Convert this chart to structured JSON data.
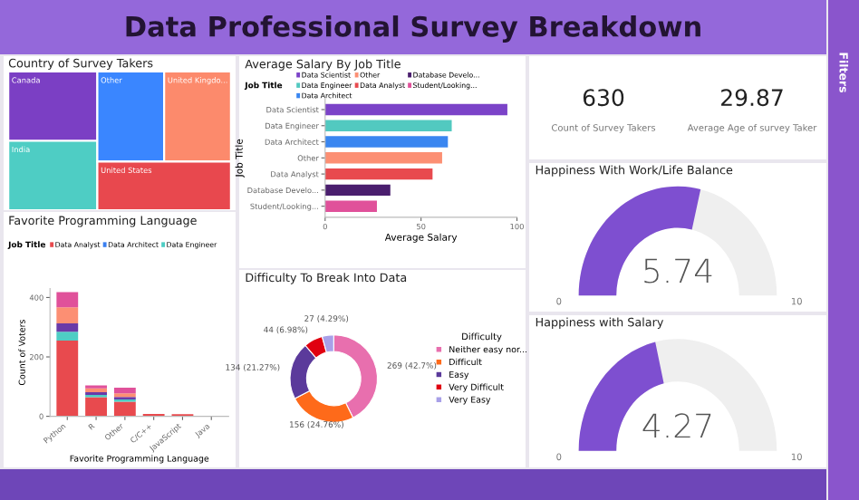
{
  "chart_data": [
    {
      "type": "other",
      "title": "Data Professional Survey Breakdown",
      "annotations": [
        "Filters"
      ]
    },
    {
      "type": "other",
      "title": "Country of Survey Takers",
      "categories": [
        "Canada",
        "India",
        "Other",
        "United Kingdo...",
        "United States"
      ],
      "colors": [
        "#7b3fc4",
        "#4ecdc4",
        "#3a86ff",
        "#fc8a6c",
        "#e8484e"
      ]
    },
    {
      "type": "bar",
      "stacked": true,
      "title": "Favorite Programming Language",
      "legend_title": "Job Title",
      "legend": "top",
      "xlabel": "Favorite Programming Language",
      "ylabel": "Count of Voters",
      "categories": [
        "Python",
        "R",
        "Other",
        "C/C++",
        "JavaScript",
        "Java"
      ],
      "ylim": [
        0,
        430
      ],
      "yticks": [
        0,
        200,
        400
      ],
      "grid": false,
      "series": [
        {
          "name": "Data Analyst",
          "color": "#e84a4e",
          "values": [
            255,
            64,
            49,
            8,
            7,
            2
          ]
        },
        {
          "name": "Data Architect",
          "color": "#3a7ff0",
          "values": [
            null,
            null,
            null,
            null,
            null,
            null
          ]
        },
        {
          "name": "Data Engineer",
          "color": "#4ecdc4",
          "values": [
            30,
            8,
            8,
            null,
            null,
            null
          ]
        },
        {
          "color": "#6a3aa8",
          "values": [
            28,
            9,
            8,
            null,
            null,
            null
          ]
        },
        {
          "color": "#fc8f73",
          "values": [
            54,
            13,
            12,
            null,
            null,
            null
          ]
        },
        {
          "color": "#e0519a",
          "values": [
            51,
            10,
            19,
            null,
            null,
            null
          ]
        }
      ]
    },
    {
      "type": "bar",
      "orientation": "horizontal",
      "title": "Average Salary By Job Title",
      "legend_title": "Job Title",
      "legend": "top",
      "xlabel": "Average Salary",
      "ylabel": "Job Title",
      "categories": [
        "Data Scientist",
        "Data Engineer",
        "Data Architect",
        "Other",
        "Data Analyst",
        "Database Develo...",
        "Student/Looking..."
      ],
      "series": [
        {
          "name": "Data Scientist",
          "color": "#7b43c8",
          "values": [
            95,
            null,
            null,
            null,
            null,
            null,
            null
          ]
        },
        {
          "name": "Data Engineer",
          "color": "#52c9c0",
          "values": [
            null,
            66,
            null,
            null,
            null,
            null,
            null
          ]
        },
        {
          "name": "Data Architect",
          "color": "#3a86f0",
          "values": [
            null,
            null,
            64,
            null,
            null,
            null,
            null
          ]
        },
        {
          "name": "Other",
          "color": "#fc8f73",
          "values": [
            null,
            null,
            null,
            61,
            null,
            null,
            null
          ]
        },
        {
          "name": "Data Analyst",
          "color": "#e84a4e",
          "values": [
            null,
            null,
            null,
            null,
            56,
            null,
            null
          ]
        },
        {
          "name": "Database Develo...",
          "color": "#4a1e6e",
          "values": [
            null,
            null,
            null,
            null,
            null,
            34,
            null
          ]
        },
        {
          "name": "Student/Looking...",
          "color": "#e0519a",
          "values": [
            null,
            null,
            null,
            null,
            null,
            null,
            27
          ]
        }
      ],
      "xlim": [
        0,
        100
      ],
      "xticks": [
        0,
        50,
        100
      ],
      "grid": false
    },
    {
      "type": "donut",
      "title": "Difficulty To Break Into Data",
      "legend_title": "Difficulty",
      "legend": "right",
      "categories": [
        "Neither easy nor...",
        "Difficult",
        "Easy",
        "Very Difficult",
        "Very Easy"
      ],
      "values": [
        269,
        156,
        134,
        44,
        27
      ],
      "value_labels": [
        "269 (42.7%)",
        "156 (24.76%)",
        "134 (21.27%)",
        "44 (6.98%)",
        "27 (4.29%)"
      ],
      "colors": [
        "#e86fae",
        "#fe6a1a",
        "#5b3a9b",
        "#e00010",
        "#a8a0e8"
      ]
    },
    {
      "type": "other",
      "annotations": [
        "630",
        "Count of Survey Takers",
        "29.87",
        "Average Age of survey Taker"
      ]
    },
    {
      "type": "other",
      "title": "Happiness With Work/Life Balance",
      "annotations": [
        "5.74",
        "0",
        "10"
      ],
      "colors": [
        "#7e4fd0"
      ]
    },
    {
      "type": "other",
      "title": "Happiness with Salary",
      "annotations": [
        "4.27",
        "0",
        "10"
      ],
      "colors": [
        "#7e4fd0"
      ]
    }
  ]
}
